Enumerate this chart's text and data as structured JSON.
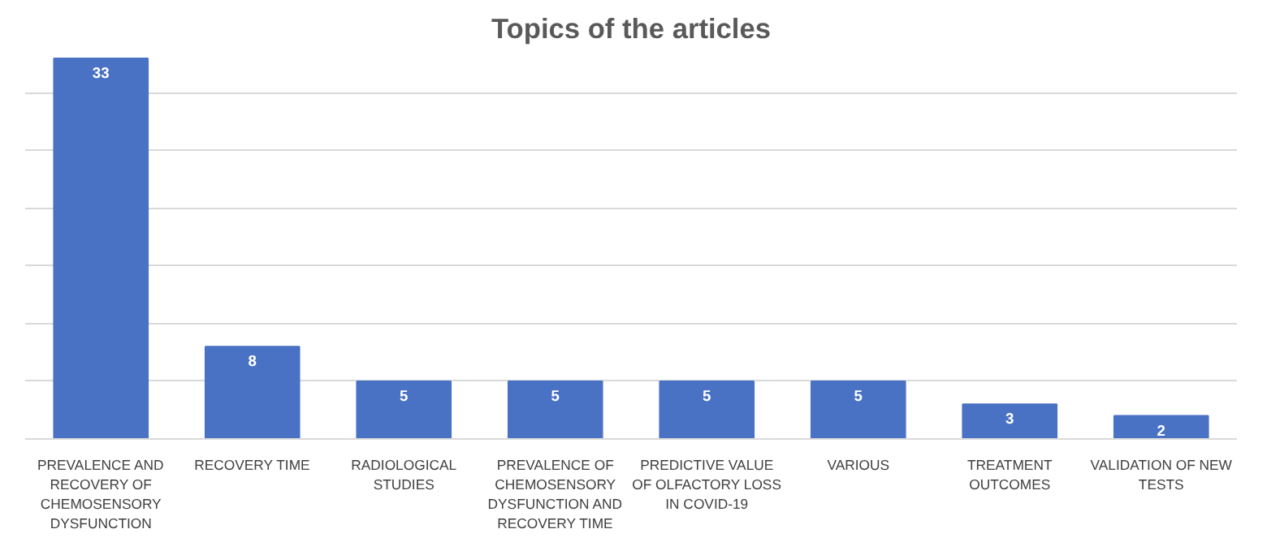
{
  "chart_data": {
    "type": "bar",
    "title": "Topics of the articles",
    "categories": [
      "PREVALENCE AND RECOVERY OF CHEMOSENSORY DYSFUNCTION",
      "RECOVERY TIME",
      "RADIOLOGICAL STUDIES",
      "PREVALENCE OF CHEMOSENSORY DYSFUNCTION AND RECOVERY TIME",
      "PREDICTIVE VALUE OF OLFACTORY LOSS IN COVID-19",
      "VARIOUS",
      "TREATMENT OUTCOMES",
      "VALIDATION OF NEW TESTS"
    ],
    "values": [
      33,
      8,
      5,
      5,
      5,
      5,
      3,
      2
    ],
    "color": "#4a72c4",
    "data_labels": true,
    "grid": "y",
    "tick_labels": "x"
  }
}
